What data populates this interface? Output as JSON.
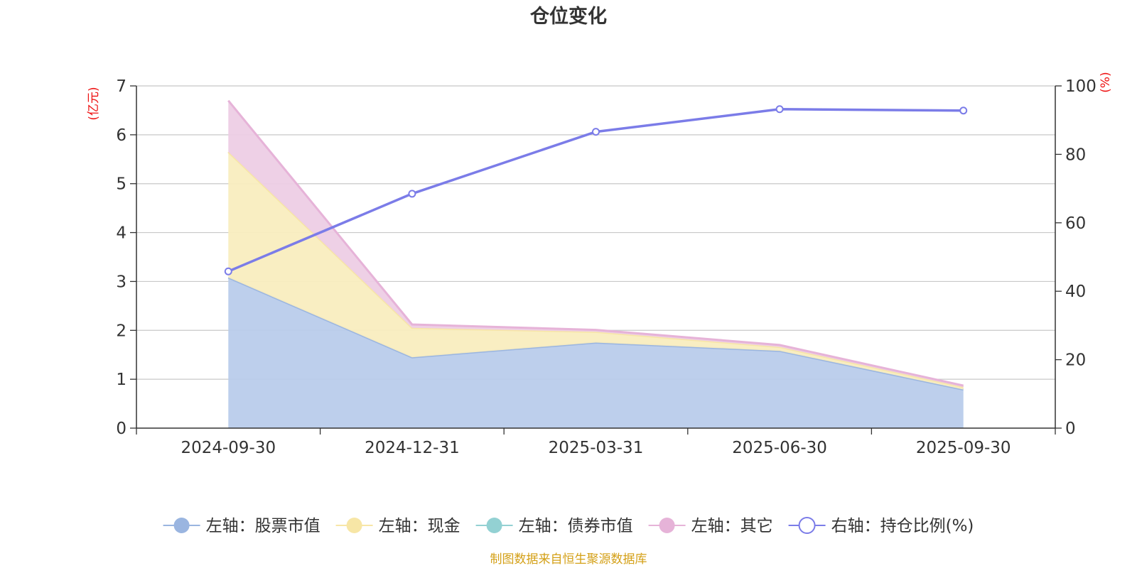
{
  "chart_data": {
    "type": "area",
    "title": "仓位变化",
    "y_left_label": "(亿元)",
    "y_right_label": "(%)",
    "categories": [
      "2024-09-30",
      "2024-12-31",
      "2025-03-31",
      "2025-06-30",
      "2025-09-30"
    ],
    "y_left_ticks": [
      "0",
      "1",
      "2",
      "3",
      "4",
      "5",
      "6",
      "7"
    ],
    "y_right_ticks": [
      "0",
      "20",
      "40",
      "60",
      "80",
      "100"
    ],
    "ylim_left": [
      0,
      7
    ],
    "ylim_right": [
      0,
      100
    ],
    "stacked": true,
    "grid": true,
    "legend_position": "bottom",
    "series": [
      {
        "name": "左轴：股票市值",
        "axis": "left",
        "kind": "area",
        "color": "#9ab5e0",
        "fill": "#b9cceb",
        "values": [
          3.08,
          1.45,
          1.75,
          1.58,
          0.79
        ]
      },
      {
        "name": "左轴：现金",
        "axis": "left",
        "kind": "area",
        "color": "#f7e6a6",
        "fill": "#f9edbf",
        "values": [
          2.57,
          0.6,
          0.22,
          0.08,
          0.05
        ]
      },
      {
        "name": "左轴：债券市值",
        "axis": "left",
        "kind": "area",
        "color": "#93d1d3",
        "fill": "#b5e0e1",
        "values": [
          0,
          0,
          0,
          0,
          0
        ]
      },
      {
        "name": "左轴：其它",
        "axis": "left",
        "kind": "area",
        "color": "#e6b3d8",
        "fill": "#edcde5",
        "values": [
          1.05,
          0.07,
          0.04,
          0.04,
          0.03
        ]
      },
      {
        "name": "右轴：持仓比例(%)",
        "axis": "right",
        "kind": "line",
        "color": "#7b7ce8",
        "values": [
          45.8,
          68.5,
          86.6,
          93.2,
          92.8
        ]
      }
    ],
    "source": "制图数据来自恒生聚源数据库"
  }
}
